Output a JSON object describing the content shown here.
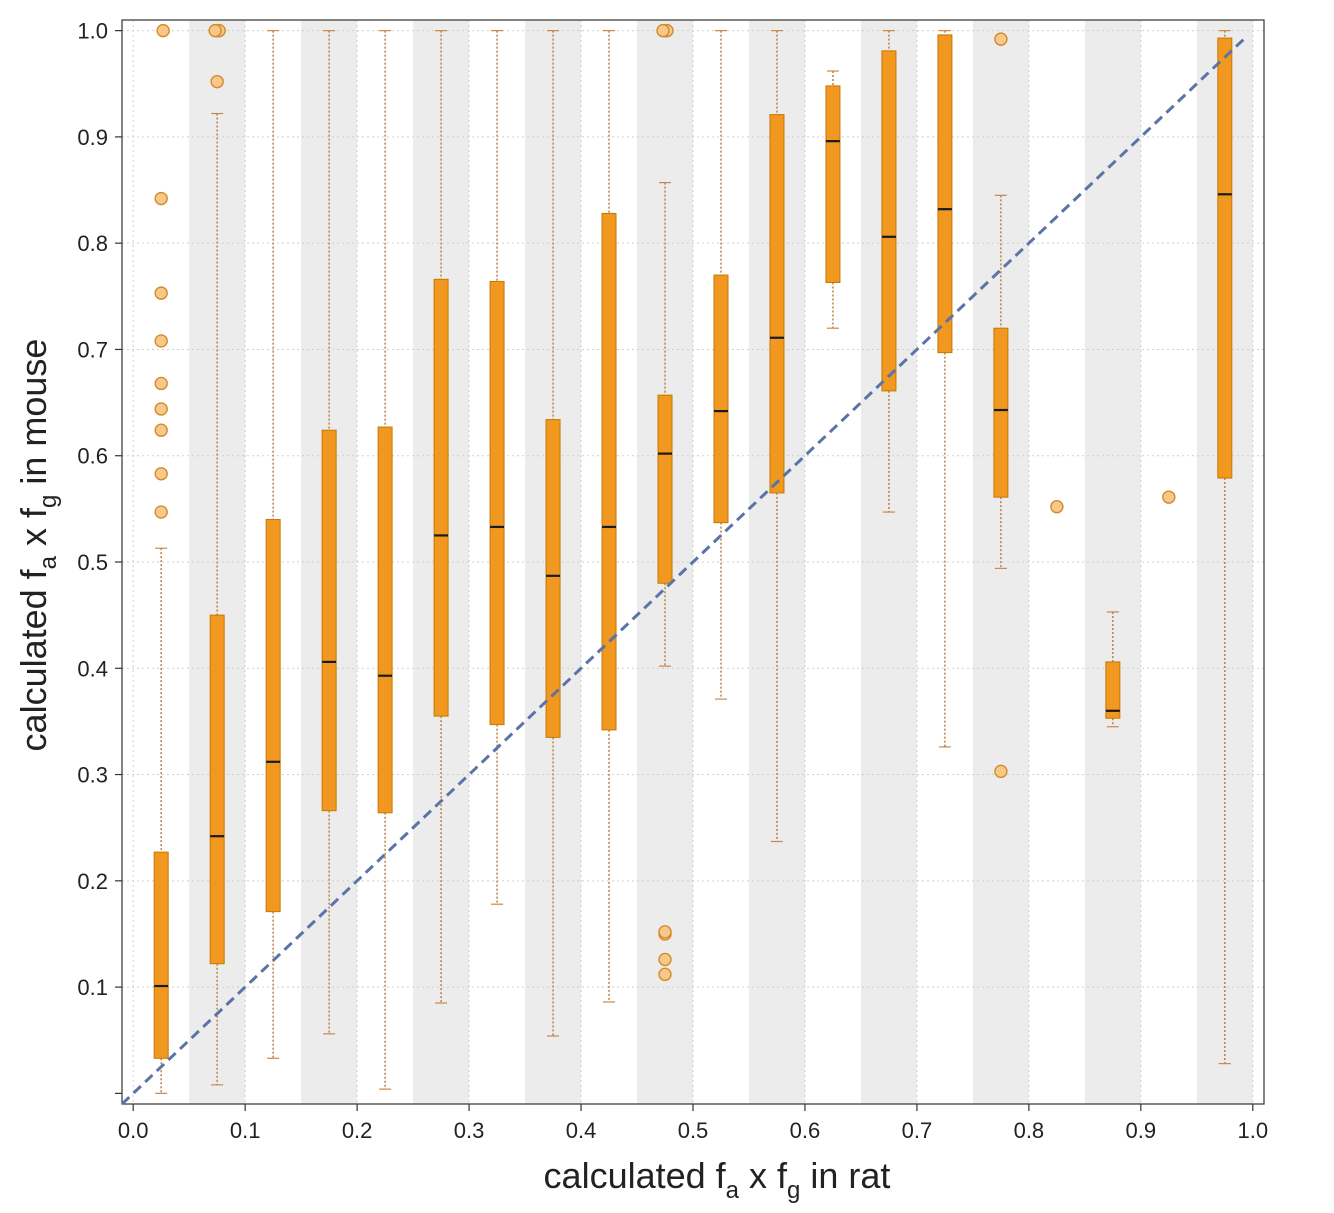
{
  "chart_data": {
    "type": "box",
    "xlabel": {
      "main": "calculated f",
      "sub1": "a",
      "mid": " x f",
      "sub2": "g",
      "tail": " in rat"
    },
    "ylabel": {
      "main": "calculated f",
      "sub1": "a",
      "mid": " x f",
      "sub2": "g",
      "tail": " in mouse"
    },
    "xlim": [
      -0.01,
      1.01
    ],
    "ylim": [
      -0.01,
      1.01
    ],
    "x_ticks": [
      "0.0",
      "0.1",
      "0.2",
      "0.3",
      "0.4",
      "0.5",
      "0.6",
      "0.7",
      "0.8",
      "0.9",
      "1.0"
    ],
    "y_ticks": [
      "0.1",
      "0.2",
      "0.3",
      "0.4",
      "0.5",
      "0.6",
      "0.7",
      "0.8",
      "0.9",
      "1.0"
    ],
    "grid": true,
    "bin_shading": "alternating grey bands",
    "reference_line": {
      "type": "identity",
      "style": "dashed",
      "color": "#5a74a8"
    },
    "colors": {
      "box": "#f0981f",
      "box_edge": "#c77800",
      "outlier_fill": "#f6c98a",
      "median": "#1a1a1a",
      "band": "#ececec"
    },
    "boxes": [
      {
        "x": 0.025,
        "whisker_low": 0.0,
        "q1": 0.033,
        "median": 0.101,
        "q3": 0.227,
        "whisker_high": 0.513,
        "outliers": [
          0.547,
          0.583,
          0.624,
          0.644,
          0.668,
          0.708,
          0.753,
          0.842,
          1.0
        ]
      },
      {
        "x": 0.075,
        "whisker_low": 0.008,
        "q1": 0.122,
        "median": 0.242,
        "q3": 0.45,
        "whisker_high": 0.922,
        "outliers": [
          0.952,
          1.0,
          1.0,
          1.0
        ]
      },
      {
        "x": 0.125,
        "whisker_low": 0.033,
        "q1": 0.171,
        "median": 0.312,
        "q3": 0.54,
        "whisker_high": 1.0,
        "outliers": []
      },
      {
        "x": 0.175,
        "whisker_low": 0.056,
        "q1": 0.266,
        "median": 0.406,
        "q3": 0.624,
        "whisker_high": 1.0,
        "outliers": []
      },
      {
        "x": 0.225,
        "whisker_low": 0.004,
        "q1": 0.264,
        "median": 0.393,
        "q3": 0.627,
        "whisker_high": 1.0,
        "outliers": []
      },
      {
        "x": 0.275,
        "whisker_low": 0.085,
        "q1": 0.355,
        "median": 0.525,
        "q3": 0.766,
        "whisker_high": 1.0,
        "outliers": []
      },
      {
        "x": 0.325,
        "whisker_low": 0.178,
        "q1": 0.347,
        "median": 0.533,
        "q3": 0.764,
        "whisker_high": 1.0,
        "outliers": []
      },
      {
        "x": 0.375,
        "whisker_low": 0.054,
        "q1": 0.335,
        "median": 0.487,
        "q3": 0.634,
        "whisker_high": 1.0,
        "outliers": []
      },
      {
        "x": 0.425,
        "whisker_low": 0.086,
        "q1": 0.342,
        "median": 0.533,
        "q3": 0.828,
        "whisker_high": 1.0,
        "outliers": []
      },
      {
        "x": 0.475,
        "whisker_low": 0.402,
        "q1": 0.48,
        "median": 0.602,
        "q3": 0.657,
        "whisker_high": 0.857,
        "outliers": [
          0.112,
          0.126,
          0.15,
          0.152,
          1.0,
          1.0,
          1.0
        ]
      },
      {
        "x": 0.525,
        "whisker_low": 0.371,
        "q1": 0.537,
        "median": 0.642,
        "q3": 0.77,
        "whisker_high": 1.0,
        "outliers": []
      },
      {
        "x": 0.575,
        "whisker_low": 0.237,
        "q1": 0.565,
        "median": 0.711,
        "q3": 0.921,
        "whisker_high": 1.0,
        "outliers": []
      },
      {
        "x": 0.625,
        "whisker_low": 0.72,
        "q1": 0.763,
        "median": 0.896,
        "q3": 0.948,
        "whisker_high": 0.962,
        "outliers": []
      },
      {
        "x": 0.675,
        "whisker_low": 0.547,
        "q1": 0.661,
        "median": 0.806,
        "q3": 0.981,
        "whisker_high": 1.0,
        "outliers": []
      },
      {
        "x": 0.725,
        "whisker_low": 0.326,
        "q1": 0.697,
        "median": 0.832,
        "q3": 0.996,
        "whisker_high": 1.0,
        "outliers": []
      },
      {
        "x": 0.775,
        "whisker_low": 0.494,
        "q1": 0.561,
        "median": 0.643,
        "q3": 0.72,
        "whisker_high": 0.845,
        "outliers": [
          0.303,
          0.992
        ]
      },
      {
        "x": 0.825,
        "outliers": [
          0.552
        ]
      },
      {
        "x": 0.875,
        "whisker_low": 0.345,
        "q1": 0.353,
        "median": 0.36,
        "q3": 0.406,
        "whisker_high": 0.453,
        "outliers": []
      },
      {
        "x": 0.925,
        "outliers": [
          0.561
        ]
      },
      {
        "x": 0.975,
        "whisker_low": 0.028,
        "q1": 0.579,
        "median": 0.846,
        "q3": 0.993,
        "whisker_high": 1.0,
        "outliers": []
      }
    ]
  }
}
